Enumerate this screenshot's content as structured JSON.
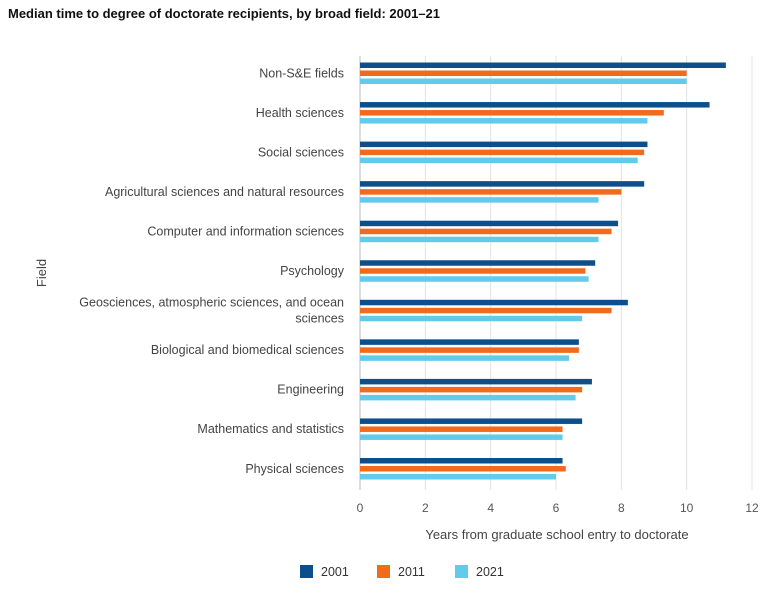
{
  "chart_data": {
    "type": "bar",
    "orientation": "horizontal",
    "title": "Median time to degree of doctorate recipients, by broad field: 2001–21",
    "xlabel": "Years from graduate school entry to doctorate",
    "ylabel": "Field",
    "xlim": [
      0,
      12
    ],
    "xticks": [
      0,
      2,
      4,
      6,
      8,
      10,
      12
    ],
    "grid": true,
    "legend_position": "bottom",
    "categories": [
      [
        "Non-S&E fields"
      ],
      [
        "Health sciences"
      ],
      [
        "Social sciences"
      ],
      [
        "Agricultural sciences and natural resources"
      ],
      [
        "Computer and information sciences"
      ],
      [
        "Psychology"
      ],
      [
        "Geosciences, atmospheric sciences, and ocean",
        "sciences"
      ],
      [
        "Biological and biomedical sciences"
      ],
      [
        "Engineering"
      ],
      [
        "Mathematics and statistics"
      ],
      [
        "Physical sciences"
      ]
    ],
    "series": [
      {
        "name": "2001",
        "color": "#0d4f8b",
        "values": [
          11.2,
          10.7,
          8.8,
          8.7,
          7.9,
          7.2,
          8.2,
          6.7,
          7.1,
          6.8,
          6.2
        ]
      },
      {
        "name": "2011",
        "color": "#f26a1b",
        "values": [
          10.0,
          9.3,
          8.7,
          8.0,
          7.7,
          6.9,
          7.7,
          6.7,
          6.8,
          6.2,
          6.3
        ]
      },
      {
        "name": "2021",
        "color": "#62cbec",
        "values": [
          10.0,
          8.8,
          8.5,
          7.3,
          7.3,
          7.0,
          6.8,
          6.4,
          6.6,
          6.2,
          6.0
        ]
      }
    ]
  }
}
